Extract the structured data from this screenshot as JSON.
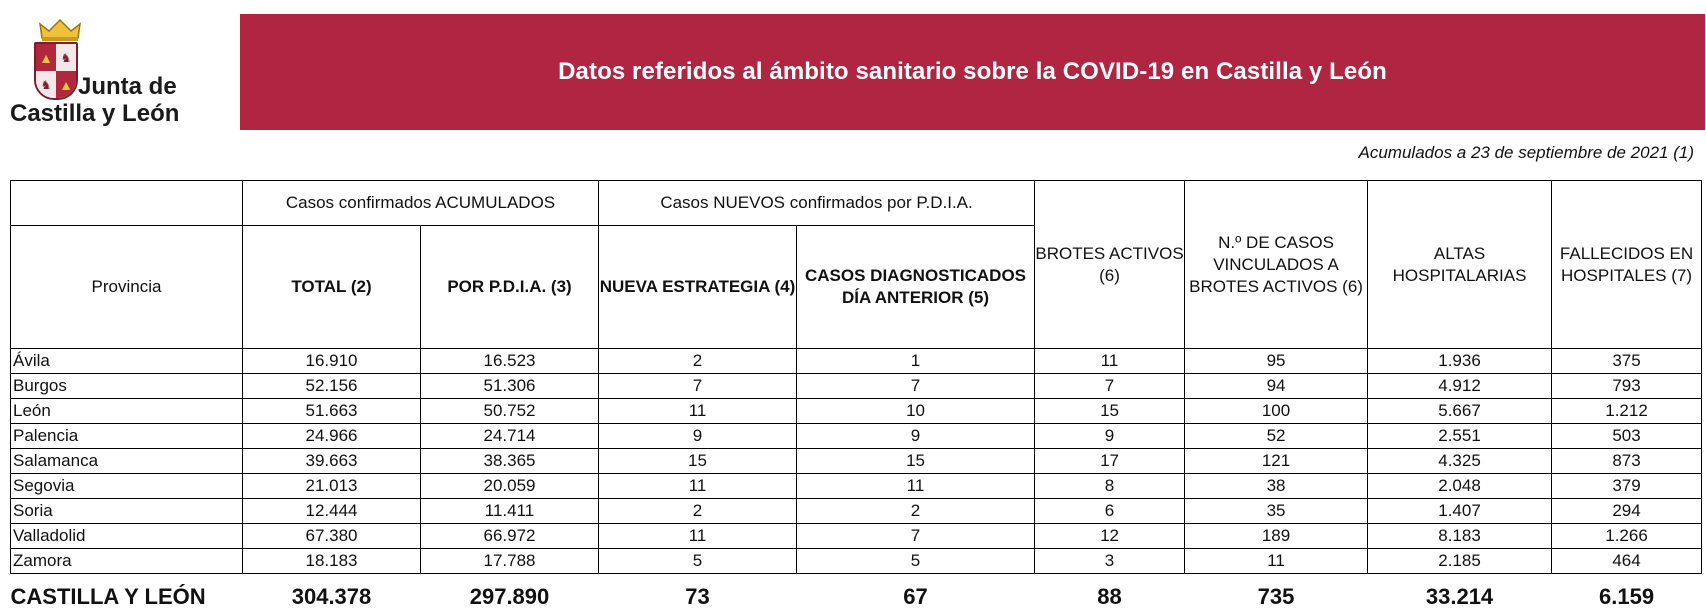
{
  "logo": {
    "line1": "Junta de",
    "line2": "Castilla y León",
    "colors": {
      "red": "#b1283e",
      "gold": "#f0c23b",
      "dark": "#7a1e2e"
    }
  },
  "header": {
    "title": "Datos referidos al ámbito sanitario sobre la COVID-19 en Castilla y León",
    "bg_color": "#b02642"
  },
  "date_note": "Acumulados a 23 de septiembre de 2021 (1)",
  "table": {
    "group_headers": {
      "acumulados": "Casos confirmados ACUMULADOS",
      "nuevos": "Casos NUEVOS confirmados por P.D.I.A."
    },
    "columns": {
      "provincia": "Provincia",
      "total": "TOTAL (2)",
      "por_pdia": "POR P.D.I.A. (3)",
      "nueva_estrategia": "NUEVA ESTRATEGIA (4)",
      "casos_diag": "CASOS DIAGNOSTICADOS DÍA ANTERIOR (5)",
      "brotes": "BROTES ACTIVOS (6)",
      "vinculados": "N.º DE CASOS VINCULADOS A BROTES ACTIVOS (6)",
      "altas": "ALTAS HOSPITALARIAS",
      "fallecidos": "FALLECIDOS EN HOSPITALES (7)"
    },
    "rows": [
      {
        "provincia": "Ávila",
        "total": "16.910",
        "por_pdia": "16.523",
        "nueva_estrategia": "2",
        "casos_diag": "1",
        "brotes": "11",
        "vinculados": "95",
        "altas": "1.936",
        "fallecidos": "375"
      },
      {
        "provincia": "Burgos",
        "total": "52.156",
        "por_pdia": "51.306",
        "nueva_estrategia": "7",
        "casos_diag": "7",
        "brotes": "7",
        "vinculados": "94",
        "altas": "4.912",
        "fallecidos": "793"
      },
      {
        "provincia": "León",
        "total": "51.663",
        "por_pdia": "50.752",
        "nueva_estrategia": "11",
        "casos_diag": "10",
        "brotes": "15",
        "vinculados": "100",
        "altas": "5.667",
        "fallecidos": "1.212"
      },
      {
        "provincia": "Palencia",
        "total": "24.966",
        "por_pdia": "24.714",
        "nueva_estrategia": "9",
        "casos_diag": "9",
        "brotes": "9",
        "vinculados": "52",
        "altas": "2.551",
        "fallecidos": "503"
      },
      {
        "provincia": "Salamanca",
        "total": "39.663",
        "por_pdia": "38.365",
        "nueva_estrategia": "15",
        "casos_diag": "15",
        "brotes": "17",
        "vinculados": "121",
        "altas": "4.325",
        "fallecidos": "873"
      },
      {
        "provincia": "Segovia",
        "total": "21.013",
        "por_pdia": "20.059",
        "nueva_estrategia": "11",
        "casos_diag": "11",
        "brotes": "8",
        "vinculados": "38",
        "altas": "2.048",
        "fallecidos": "379"
      },
      {
        "provincia": "Soria",
        "total": "12.444",
        "por_pdia": "11.411",
        "nueva_estrategia": "2",
        "casos_diag": "2",
        "brotes": "6",
        "vinculados": "35",
        "altas": "1.407",
        "fallecidos": "294"
      },
      {
        "provincia": "Valladolid",
        "total": "67.380",
        "por_pdia": "66.972",
        "nueva_estrategia": "11",
        "casos_diag": "7",
        "brotes": "12",
        "vinculados": "189",
        "altas": "8.183",
        "fallecidos": "1.266"
      },
      {
        "provincia": "Zamora",
        "total": "18.183",
        "por_pdia": "17.788",
        "nueva_estrategia": "5",
        "casos_diag": "5",
        "brotes": "3",
        "vinculados": "11",
        "altas": "2.185",
        "fallecidos": "464"
      }
    ],
    "totals": {
      "provincia": "CASTILLA Y LEÓN",
      "total": "304.378",
      "por_pdia": "297.890",
      "nueva_estrategia": "73",
      "casos_diag": "67",
      "brotes": "88",
      "vinculados": "735",
      "altas": "33.214",
      "fallecidos": "6.159"
    }
  }
}
